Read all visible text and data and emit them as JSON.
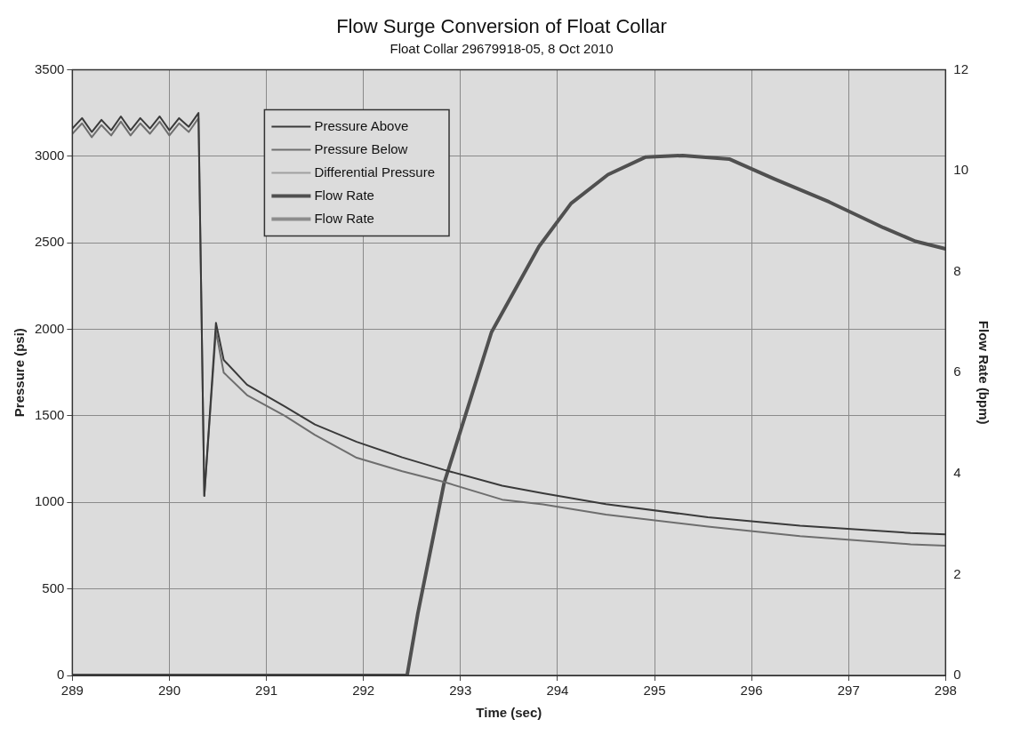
{
  "chart_data": {
    "type": "line",
    "title": "Flow Surge Conversion of Float Collar",
    "subtitle": "Float Collar 29679918-05, 8 Oct 2010",
    "xlabel": "Time (sec)",
    "ylabel": "Pressure (psi)",
    "y2label": "Flow Rate (bpm)",
    "xlim": [
      289,
      298
    ],
    "xticks": [
      289,
      290,
      291,
      292,
      293,
      294,
      295,
      296,
      297,
      298
    ],
    "ylim": [
      0,
      3500
    ],
    "yticks": [
      0,
      500,
      1000,
      1500,
      2000,
      2500,
      3000,
      3500
    ],
    "y2lim": [
      0,
      12
    ],
    "y2ticks": [
      0,
      2,
      4,
      6,
      8,
      10,
      12
    ],
    "grid": true,
    "legend": "top left",
    "marker": "none",
    "line_style": "solid",
    "series": [
      {
        "name": "Pressure Above",
        "color": "#3a3a3a",
        "x": [
          289,
          289.1,
          289.2,
          289.3,
          289.4,
          289.5,
          289.6,
          289.7,
          289.8,
          289.9,
          290,
          290.1,
          290.2,
          290.3,
          290.36,
          290.48,
          290.56,
          290.8,
          291.19,
          291.5,
          291.93,
          292.4,
          292.83,
          293.43,
          293.85,
          294.5,
          295.55,
          296.5,
          297.64,
          298
        ],
        "values": [
          3160,
          3220,
          3140,
          3210,
          3150,
          3230,
          3150,
          3220,
          3160,
          3230,
          3150,
          3220,
          3170,
          3250,
          1037,
          2037,
          1823,
          1680,
          1554,
          1450,
          1350,
          1260,
          1188,
          1096,
          1053,
          990,
          914,
          865,
          823,
          815
        ]
      },
      {
        "name": "Pressure Below",
        "color": "#6e6e6e",
        "x": [
          289,
          289.1,
          289.2,
          289.3,
          289.4,
          289.5,
          289.6,
          289.7,
          289.8,
          289.9,
          290,
          290.1,
          290.2,
          290.3,
          290.36,
          290.48,
          290.56,
          290.8,
          291.19,
          291.5,
          291.93,
          292.4,
          292.83,
          293.43,
          293.85,
          294.5,
          295.55,
          296.5,
          297.64,
          298
        ],
        "values": [
          3130,
          3190,
          3110,
          3180,
          3120,
          3200,
          3120,
          3190,
          3130,
          3200,
          3120,
          3190,
          3140,
          3220,
          1037,
          1990,
          1750,
          1620,
          1500,
          1390,
          1258,
          1180,
          1118,
          1016,
          989,
          930,
          860,
          805,
          758,
          750
        ]
      },
      {
        "name": "Differential Pressure",
        "color": "#a0a0a0"
      },
      {
        "name": "Flow Rate",
        "color": "#505050",
        "axis": "y2",
        "x": [
          289,
          292.45,
          292.56,
          292.83,
          293.32,
          293.81,
          294.14,
          294.52,
          294.91,
          295.29,
          295.77,
          296.23,
          296.8,
          297.36,
          297.69,
          298
        ],
        "values": [
          0,
          0,
          1.22,
          3.8,
          6.8,
          8.5,
          9.35,
          9.92,
          10.27,
          10.3,
          10.23,
          9.84,
          9.38,
          8.87,
          8.6,
          8.45
        ]
      },
      {
        "name": "Flow Rate",
        "color": "#8c8c8c",
        "axis": "y2"
      }
    ]
  }
}
